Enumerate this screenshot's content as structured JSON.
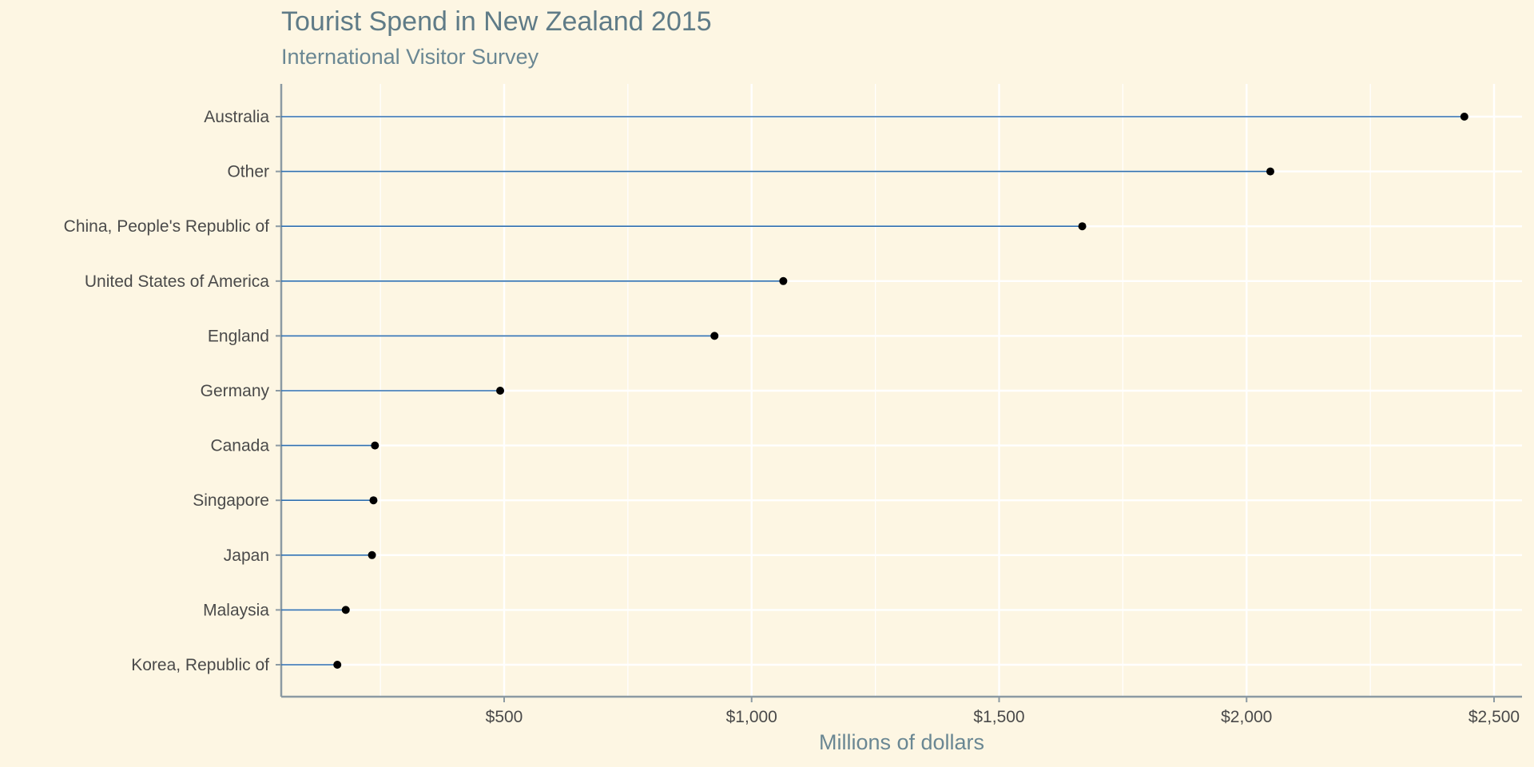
{
  "title": "Tourist Spend in New Zealand 2015",
  "subtitle": "International Visitor Survey",
  "colors": {
    "background": "#fdf6e3",
    "grid": "#ffffff",
    "axis": "#8c9aa3",
    "segment": "#2f6fae",
    "point": "#000000",
    "title": "#5f7b87"
  },
  "chart_data": {
    "type": "lollipop",
    "title": "Tourist Spend in New Zealand 2015",
    "subtitle": "International Visitor Survey",
    "xlabel": "Millions of dollars",
    "ylabel": "",
    "xlim": [
      0,
      2550
    ],
    "x_ticks": [
      500,
      1000,
      1500,
      2000,
      2500
    ],
    "x_tick_labels": [
      "$500",
      "$1,000",
      "$1,500",
      "$2,000",
      "$2,500"
    ],
    "grid": true,
    "legend": "none",
    "categories": [
      "Australia",
      "Other",
      "China, People's Republic of",
      "United States of America",
      "England",
      "Germany",
      "Canada",
      "Singapore",
      "Japan",
      "Malaysia",
      "Korea, Republic of"
    ],
    "values": [
      2440,
      2048,
      1668,
      1064,
      925,
      492,
      239,
      236,
      233,
      180,
      163
    ]
  }
}
